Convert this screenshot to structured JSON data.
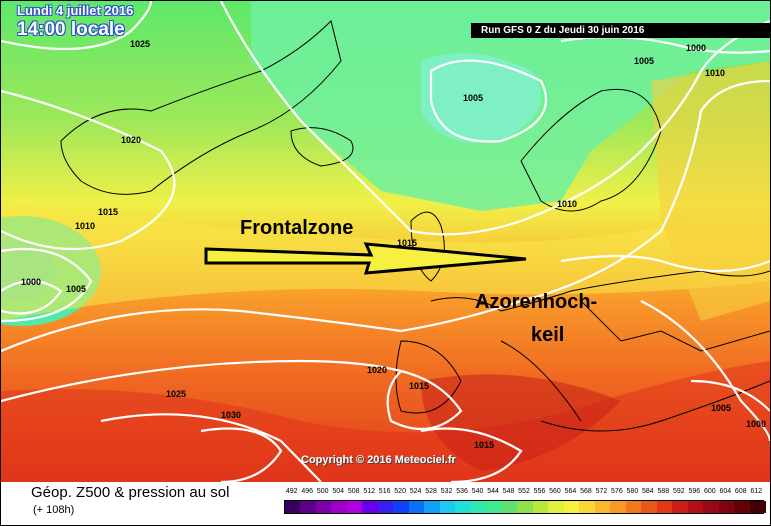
{
  "header": {
    "date": "Lundi 4 juillet 2016",
    "local_time": "14:00 locale",
    "run": "Run GFS 0 Z du Jeudi 30 juin 2016"
  },
  "annotations": {
    "frontalzone": "Frontalzone",
    "azoren_line1": "Azorenhoch-",
    "azoren_line2": "keil"
  },
  "copyright": "Copyright © 2016 Meteociel.fr",
  "isobar_labels": [
    "1025",
    "1000",
    "1005",
    "1010",
    "1005",
    "1020",
    "1015",
    "1010",
    "1010",
    "1015",
    "1000",
    "1005",
    "1020",
    "1015",
    "1025",
    "1030",
    "1015",
    "1005",
    "1000"
  ],
  "legend": {
    "title": "Géop. Z500 & pression au sol",
    "subtitle": "(+ 108h)",
    "scale_values": [
      "492",
      "496",
      "500",
      "504",
      "508",
      "512",
      "516",
      "520",
      "524",
      "528",
      "532",
      "536",
      "540",
      "544",
      "548",
      "552",
      "556",
      "560",
      "564",
      "568",
      "572",
      "576",
      "580",
      "584",
      "588",
      "592",
      "596",
      "600",
      "604",
      "608",
      "612"
    ],
    "scale_colors": [
      "#3a0060",
      "#5a0088",
      "#7a00a8",
      "#9a00c8",
      "#b000e0",
      "#6a00e8",
      "#3a20f0",
      "#1040f8",
      "#0a70f8",
      "#10a0f8",
      "#20c8f0",
      "#20e0d8",
      "#30e8b0",
      "#40e890",
      "#60e070",
      "#90e050",
      "#b8e840",
      "#e0f040",
      "#f8f040",
      "#f8d838",
      "#f8b830",
      "#f89828",
      "#f07820",
      "#e85818",
      "#e03818",
      "#c82018",
      "#b01018",
      "#980818",
      "#800410",
      "#600208",
      "#400004"
    ]
  },
  "colors": {
    "isobar": "#ffffff",
    "header_text": "#ffffff",
    "header_outline": "#2a55c8"
  }
}
